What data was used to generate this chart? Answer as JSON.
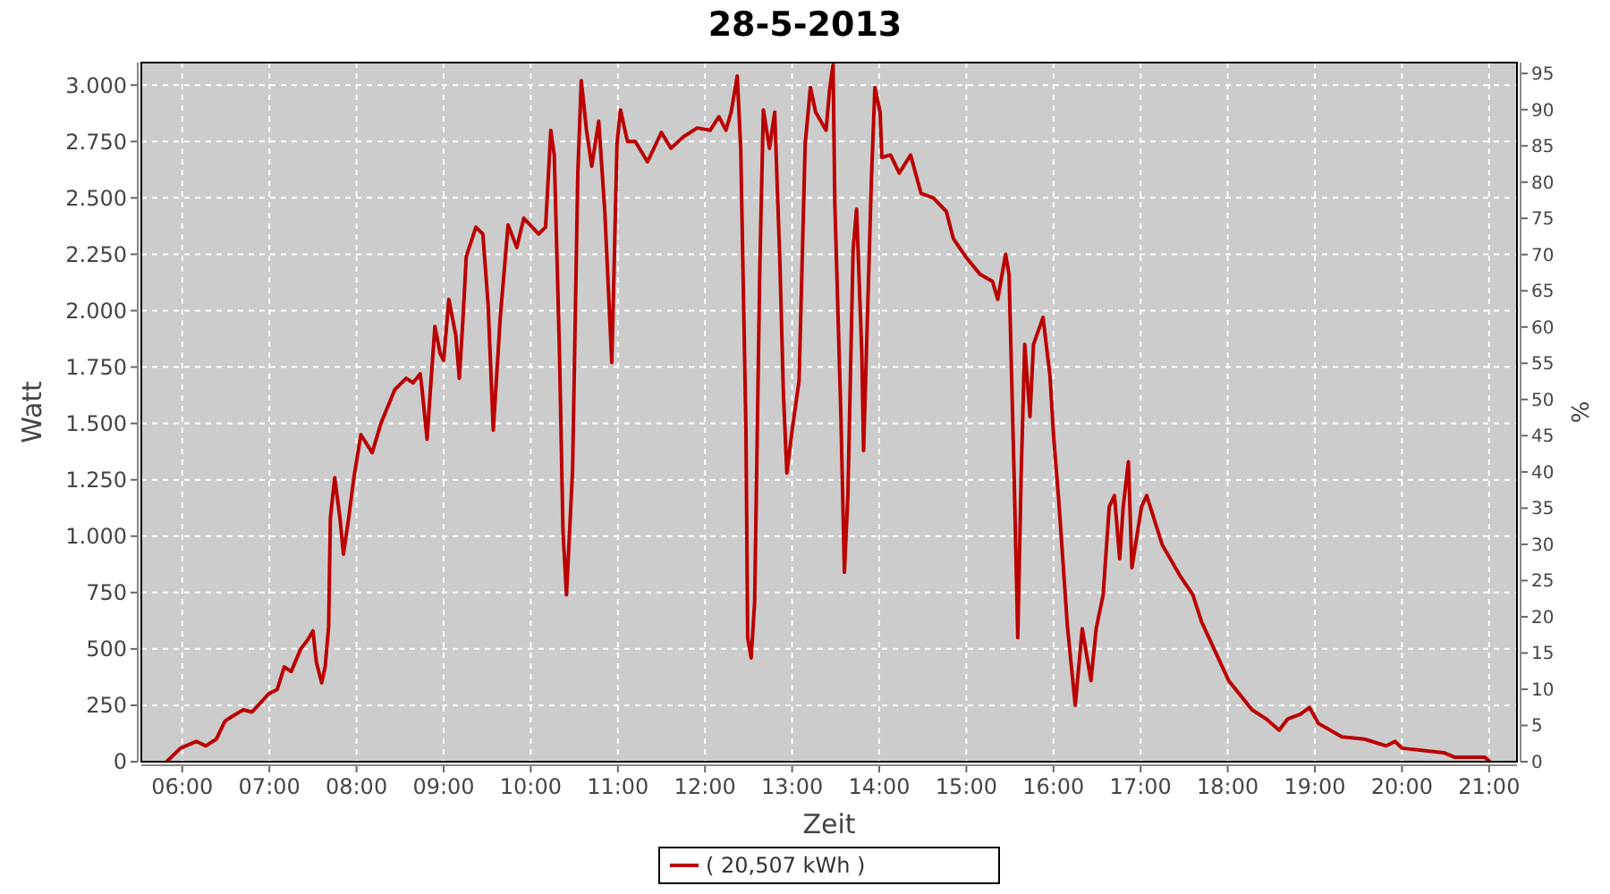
{
  "chart_data": {
    "type": "line",
    "title": "28-5-2013",
    "xlabel": "Zeit",
    "ylabel": "Watt",
    "y2label": "%",
    "xlim": [
      5.53,
      21.32
    ],
    "xticks": [
      {
        "value": 6,
        "label": "06:00"
      },
      {
        "value": 7,
        "label": "07:00"
      },
      {
        "value": 8,
        "label": "08:00"
      },
      {
        "value": 9,
        "label": "09:00"
      },
      {
        "value": 10,
        "label": "10:00"
      },
      {
        "value": 11,
        "label": "11:00"
      },
      {
        "value": 12,
        "label": "12:00"
      },
      {
        "value": 13,
        "label": "13:00"
      },
      {
        "value": 14,
        "label": "14:00"
      },
      {
        "value": 15,
        "label": "15:00"
      },
      {
        "value": 16,
        "label": "16:00"
      },
      {
        "value": 17,
        "label": "17:00"
      },
      {
        "value": 18,
        "label": "18:00"
      },
      {
        "value": 19,
        "label": "19:00"
      },
      {
        "value": 20,
        "label": "20:00"
      },
      {
        "value": 21,
        "label": "21:00"
      }
    ],
    "ylim": [
      0,
      3100
    ],
    "yticks": [
      0,
      {
        "value": 250,
        "label": "250"
      },
      {
        "value": 500,
        "label": "500"
      },
      {
        "value": 750,
        "label": "750"
      },
      {
        "value": 1000,
        "label": "1.000"
      },
      {
        "value": 1250,
        "label": "1.250"
      },
      {
        "value": 1500,
        "label": "1.500"
      },
      {
        "value": 1750,
        "label": "1.750"
      },
      {
        "value": 2000,
        "label": "2.000"
      },
      {
        "value": 2250,
        "label": "2.250"
      },
      {
        "value": 2500,
        "label": "2.500"
      },
      {
        "value": 2750,
        "label": "2.750"
      },
      {
        "value": 3000,
        "label": "3.000"
      }
    ],
    "y2lim": [
      0,
      96.5
    ],
    "y2ticks": [
      0,
      5,
      10,
      15,
      20,
      25,
      30,
      35,
      40,
      45,
      50,
      55,
      60,
      65,
      70,
      75,
      80,
      85,
      90,
      95
    ],
    "grid": true,
    "legend": "bottom",
    "marker": "none",
    "line_style": "solid",
    "x": [
      5.82,
      5.98,
      6.16,
      6.27,
      6.39,
      6.49,
      6.57,
      6.7,
      6.8,
      6.99,
      7.09,
      7.17,
      7.25,
      7.36,
      7.44,
      7.5,
      7.54,
      7.6,
      7.64,
      7.68,
      7.7,
      7.75,
      7.81,
      7.85,
      7.91,
      7.97,
      8.05,
      8.18,
      8.28,
      8.44,
      8.57,
      8.65,
      8.73,
      8.75,
      8.81,
      8.85,
      8.9,
      8.96,
      9,
      9.06,
      9.14,
      9.18,
      9.22,
      9.26,
      9.37,
      9.45,
      9.51,
      9.57,
      9.65,
      9.74,
      9.84,
      9.92,
      10.09,
      10.17,
      10.23,
      10.27,
      10.33,
      10.37,
      10.41,
      10.48,
      10.54,
      10.58,
      10.64,
      10.7,
      10.78,
      10.85,
      10.93,
      10.95,
      10.99,
      11.03,
      11.11,
      11.2,
      11.34,
      11.5,
      11.61,
      11.75,
      11.91,
      12.06,
      12.16,
      12.24,
      12.3,
      12.37,
      12.41,
      12.47,
      12.49,
      12.53,
      12.57,
      12.63,
      12.67,
      12.74,
      12.8,
      12.86,
      12.9,
      12.94,
      13,
      13.08,
      13.15,
      13.21,
      13.27,
      13.39,
      13.43,
      13.47,
      13.49,
      13.56,
      13.6,
      13.64,
      13.7,
      13.74,
      13.8,
      13.82,
      13.91,
      13.95,
      14.01,
      14.03,
      14.13,
      14.23,
      14.36,
      14.48,
      14.62,
      14.77,
      14.85,
      14.99,
      15.16,
      15.3,
      15.36,
      15.45,
      15.49,
      15.55,
      15.59,
      15.63,
      15.67,
      15.73,
      15.77,
      15.88,
      15.96,
      16,
      16.06,
      16.16,
      16.25,
      16.33,
      16.43,
      16.49,
      16.57,
      16.64,
      16.7,
      16.76,
      16.8,
      16.86,
      16.9,
      17.01,
      17.07,
      17.25,
      17.46,
      17.6,
      17.7,
      18.01,
      18.28,
      18.44,
      18.59,
      18.69,
      18.83,
      18.94,
      19.04,
      19.31,
      19.57,
      19.82,
      19.92,
      20,
      20.48,
      20.6,
      20.85,
      20.95,
      21.01
    ],
    "series": [
      {
        "name": "( 20,507 kWh )",
        "color": "#bb0000",
        "values": [
          0,
          60,
          90,
          70,
          100,
          180,
          200,
          230,
          220,
          300,
          320,
          420,
          400,
          500,
          540,
          580,
          440,
          350,
          420,
          600,
          1080,
          1260,
          1080,
          920,
          1080,
          1260,
          1450,
          1370,
          1500,
          1650,
          1700,
          1680,
          1720,
          1660,
          1430,
          1660,
          1930,
          1810,
          1780,
          2050,
          1890,
          1700,
          1950,
          2240,
          2370,
          2340,
          2030,
          1470,
          1970,
          2380,
          2280,
          2410,
          2340,
          2370,
          2800,
          2690,
          1810,
          1020,
          740,
          1290,
          2610,
          3020,
          2800,
          2640,
          2840,
          2440,
          1770,
          2080,
          2740,
          2890,
          2750,
          2750,
          2660,
          2790,
          2720,
          2770,
          2810,
          2800,
          2860,
          2800,
          2880,
          3040,
          2720,
          1470,
          550,
          460,
          710,
          2210,
          2890,
          2720,
          2880,
          2210,
          1630,
          1280,
          1470,
          1690,
          2740,
          2990,
          2880,
          2800,
          2980,
          3090,
          2480,
          1530,
          840,
          1180,
          2270,
          2450,
          1810,
          1380,
          2580,
          2990,
          2880,
          2680,
          2690,
          2610,
          2690,
          2520,
          2500,
          2440,
          2320,
          2240,
          2160,
          2130,
          2050,
          2250,
          2160,
          1240,
          550,
          1290,
          1850,
          1530,
          1850,
          1970,
          1710,
          1450,
          1160,
          600,
          250,
          590,
          360,
          590,
          740,
          1130,
          1180,
          900,
          1130,
          1330,
          860,
          1130,
          1180,
          960,
          820,
          740,
          620,
          360,
          230,
          190,
          140,
          190,
          210,
          240,
          170,
          110,
          100,
          70,
          90,
          60,
          40,
          20,
          20,
          20,
          0
        ]
      }
    ]
  }
}
